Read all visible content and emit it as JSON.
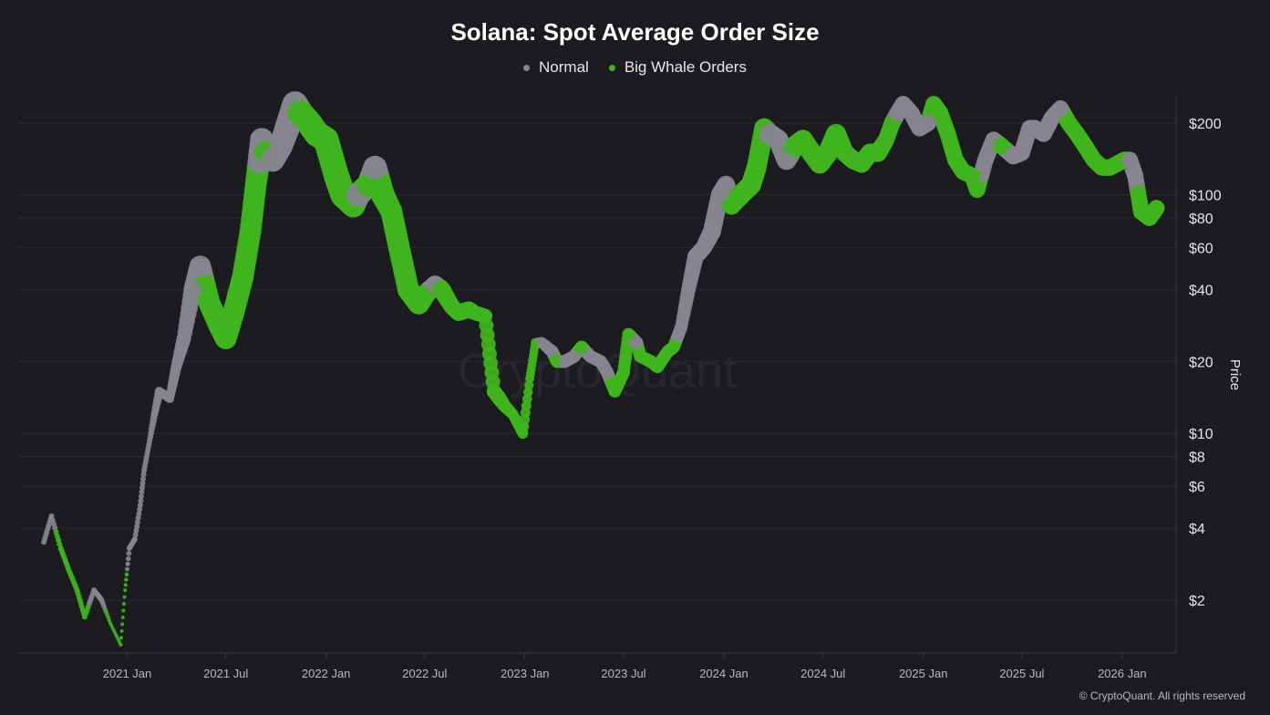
{
  "chart_data": {
    "type": "scatter",
    "title": "Solana: Spot Average Order Size",
    "ylabel": "Price",
    "y_scale": "log",
    "ylim": [
      1.2,
      260
    ],
    "xlim": [
      "2020-06-15",
      "2026-04-10"
    ],
    "grid": true,
    "legend_placement": "top-center",
    "y_ticks": [
      {
        "v": 200,
        "label": "$200"
      },
      {
        "v": 100,
        "label": "$100"
      },
      {
        "v": 80,
        "label": "$80"
      },
      {
        "v": 60,
        "label": "$60"
      },
      {
        "v": 40,
        "label": "$40"
      },
      {
        "v": 20,
        "label": "$20"
      },
      {
        "v": 10,
        "label": "$10"
      },
      {
        "v": 8,
        "label": "$8"
      },
      {
        "v": 6,
        "label": "$6"
      },
      {
        "v": 4,
        "label": "$4"
      },
      {
        "v": 2,
        "label": "$2"
      }
    ],
    "x_ticks": [
      {
        "d": "2021-01-01",
        "label": "2021 Jan"
      },
      {
        "d": "2021-07-01",
        "label": "2021 Jul"
      },
      {
        "d": "2022-01-01",
        "label": "2022 Jan"
      },
      {
        "d": "2022-07-01",
        "label": "2022 Jul"
      },
      {
        "d": "2023-01-01",
        "label": "2023 Jan"
      },
      {
        "d": "2023-07-01",
        "label": "2023 Jul"
      },
      {
        "d": "2024-01-01",
        "label": "2024 Jan"
      },
      {
        "d": "2024-07-01",
        "label": "2024 Jul"
      },
      {
        "d": "2025-01-01",
        "label": "2025 Jan"
      },
      {
        "d": "2025-07-01",
        "label": "2025 Jul"
      },
      {
        "d": "2026-01-01",
        "label": "2026 Jan"
      }
    ],
    "series": [
      {
        "name": "Normal",
        "color": "#86848f"
      },
      {
        "name": "Big Whale Orders",
        "color": "#3fb41c"
      }
    ],
    "point_fields": [
      "date",
      "price",
      "series_index",
      "relative_marker_size"
    ],
    "points": [
      [
        "2020-08-01",
        3.5,
        0,
        3
      ],
      [
        "2020-08-15",
        4.5,
        0,
        3
      ],
      [
        "2020-09-01",
        3.3,
        1,
        3
      ],
      [
        "2020-09-15",
        2.7,
        1,
        3
      ],
      [
        "2020-10-01",
        2.2,
        1,
        3
      ],
      [
        "2020-10-15",
        1.7,
        1,
        3
      ],
      [
        "2020-11-01",
        2.2,
        0,
        3
      ],
      [
        "2020-11-15",
        2.0,
        0,
        3
      ],
      [
        "2020-12-01",
        1.6,
        1,
        2
      ],
      [
        "2020-12-20",
        1.3,
        1,
        2
      ],
      [
        "2020-12-28",
        2.2,
        1,
        2
      ],
      [
        "2021-01-05",
        3.3,
        0,
        3
      ],
      [
        "2021-01-15",
        3.6,
        0,
        3
      ],
      [
        "2021-01-25",
        5,
        0,
        3
      ],
      [
        "2021-02-01",
        7,
        0,
        3
      ],
      [
        "2021-02-10",
        9,
        0,
        3
      ],
      [
        "2021-02-20",
        12,
        0,
        4
      ],
      [
        "2021-03-01",
        15,
        0,
        5
      ],
      [
        "2021-03-20",
        14,
        0,
        5
      ],
      [
        "2021-04-01",
        19,
        0,
        6
      ],
      [
        "2021-04-15",
        25,
        0,
        8
      ],
      [
        "2021-05-01",
        40,
        0,
        10
      ],
      [
        "2021-05-15",
        50,
        0,
        12
      ],
      [
        "2021-06-01",
        35,
        1,
        12
      ],
      [
        "2021-06-20",
        28,
        1,
        12
      ],
      [
        "2021-07-01",
        25,
        1,
        12
      ],
      [
        "2021-07-15",
        32,
        1,
        12
      ],
      [
        "2021-08-01",
        45,
        1,
        12
      ],
      [
        "2021-08-15",
        70,
        1,
        12
      ],
      [
        "2021-08-25",
        110,
        1,
        12
      ],
      [
        "2021-09-05",
        170,
        0,
        13
      ],
      [
        "2021-09-15",
        150,
        1,
        13
      ],
      [
        "2021-09-25",
        140,
        0,
        13
      ],
      [
        "2021-10-10",
        160,
        0,
        13
      ],
      [
        "2021-10-25",
        200,
        0,
        14
      ],
      [
        "2021-11-05",
        240,
        0,
        14
      ],
      [
        "2021-11-15",
        220,
        1,
        14
      ],
      [
        "2021-12-01",
        200,
        1,
        14
      ],
      [
        "2021-12-15",
        180,
        1,
        14
      ],
      [
        "2022-01-01",
        170,
        1,
        14
      ],
      [
        "2022-01-20",
        120,
        1,
        14
      ],
      [
        "2022-02-01",
        100,
        1,
        14
      ],
      [
        "2022-02-20",
        90,
        1,
        13
      ],
      [
        "2022-03-01",
        100,
        0,
        13
      ],
      [
        "2022-03-20",
        110,
        1,
        13
      ],
      [
        "2022-04-01",
        130,
        0,
        13
      ],
      [
        "2022-04-15",
        100,
        1,
        13
      ],
      [
        "2022-05-01",
        85,
        1,
        12
      ],
      [
        "2022-05-15",
        60,
        1,
        12
      ],
      [
        "2022-06-01",
        40,
        1,
        12
      ],
      [
        "2022-06-20",
        35,
        1,
        12
      ],
      [
        "2022-07-01",
        38,
        1,
        11
      ],
      [
        "2022-07-20",
        42,
        0,
        10
      ],
      [
        "2022-08-01",
        40,
        1,
        10
      ],
      [
        "2022-08-20",
        34,
        1,
        9
      ],
      [
        "2022-09-01",
        32,
        1,
        9
      ],
      [
        "2022-09-20",
        33,
        1,
        9
      ],
      [
        "2022-10-01",
        32,
        1,
        8
      ],
      [
        "2022-10-20",
        31,
        1,
        8
      ],
      [
        "2022-11-05",
        15,
        1,
        8
      ],
      [
        "2022-11-15",
        14,
        1,
        8
      ],
      [
        "2022-11-25",
        13,
        1,
        7
      ],
      [
        "2022-12-10",
        12,
        1,
        6
      ],
      [
        "2022-12-28",
        10,
        1,
        6
      ],
      [
        "2023-01-10",
        17,
        1,
        5
      ],
      [
        "2023-01-20",
        24,
        1,
        5
      ],
      [
        "2023-02-01",
        24,
        0,
        6
      ],
      [
        "2023-02-20",
        22,
        0,
        7
      ],
      [
        "2023-03-01",
        20,
        1,
        7
      ],
      [
        "2023-03-15",
        20,
        0,
        7
      ],
      [
        "2023-04-01",
        21,
        0,
        7
      ],
      [
        "2023-04-15",
        23,
        1,
        7
      ],
      [
        "2023-05-01",
        21,
        0,
        7
      ],
      [
        "2023-05-20",
        20,
        0,
        7
      ],
      [
        "2023-06-01",
        18,
        0,
        7
      ],
      [
        "2023-06-15",
        15,
        1,
        7
      ],
      [
        "2023-07-01",
        18,
        1,
        7
      ],
      [
        "2023-07-10",
        26,
        1,
        7
      ],
      [
        "2023-07-25",
        24,
        0,
        7
      ],
      [
        "2023-08-01",
        21,
        1,
        7
      ],
      [
        "2023-08-20",
        20,
        1,
        7
      ],
      [
        "2023-09-01",
        19,
        1,
        7
      ],
      [
        "2023-09-20",
        22,
        1,
        7
      ],
      [
        "2023-10-01",
        23,
        1,
        7
      ],
      [
        "2023-10-15",
        28,
        0,
        7
      ],
      [
        "2023-10-28",
        40,
        0,
        8
      ],
      [
        "2023-11-10",
        55,
        0,
        9
      ],
      [
        "2023-11-25",
        60,
        0,
        9
      ],
      [
        "2023-12-10",
        70,
        0,
        10
      ],
      [
        "2023-12-25",
        100,
        0,
        10
      ],
      [
        "2024-01-05",
        110,
        0,
        10
      ],
      [
        "2024-01-15",
        90,
        1,
        10
      ],
      [
        "2024-02-01",
        100,
        1,
        11
      ],
      [
        "2024-02-20",
        110,
        1,
        11
      ],
      [
        "2024-03-01",
        130,
        1,
        11
      ],
      [
        "2024-03-15",
        190,
        1,
        11
      ],
      [
        "2024-03-25",
        180,
        0,
        11
      ],
      [
        "2024-04-10",
        170,
        0,
        11
      ],
      [
        "2024-04-25",
        140,
        0,
        11
      ],
      [
        "2024-05-10",
        160,
        1,
        11
      ],
      [
        "2024-05-25",
        170,
        1,
        11
      ],
      [
        "2024-06-10",
        150,
        1,
        11
      ],
      [
        "2024-06-25",
        135,
        1,
        11
      ],
      [
        "2024-07-10",
        150,
        1,
        11
      ],
      [
        "2024-07-25",
        180,
        1,
        11
      ],
      [
        "2024-08-10",
        150,
        1,
        10
      ],
      [
        "2024-08-25",
        140,
        1,
        10
      ],
      [
        "2024-09-10",
        135,
        1,
        10
      ],
      [
        "2024-09-25",
        150,
        1,
        10
      ],
      [
        "2024-10-10",
        150,
        1,
        10
      ],
      [
        "2024-10-25",
        170,
        1,
        9
      ],
      [
        "2024-11-05",
        200,
        1,
        9
      ],
      [
        "2024-11-15",
        220,
        0,
        9
      ],
      [
        "2024-11-25",
        240,
        0,
        9
      ],
      [
        "2024-12-10",
        220,
        0,
        9
      ],
      [
        "2024-12-25",
        190,
        0,
        9
      ],
      [
        "2025-01-10",
        200,
        0,
        9
      ],
      [
        "2025-01-20",
        240,
        1,
        9
      ],
      [
        "2025-02-01",
        220,
        1,
        9
      ],
      [
        "2025-02-15",
        180,
        1,
        9
      ],
      [
        "2025-03-01",
        140,
        1,
        9
      ],
      [
        "2025-03-15",
        125,
        1,
        9
      ],
      [
        "2025-04-01",
        120,
        1,
        9
      ],
      [
        "2025-04-10",
        105,
        1,
        9
      ],
      [
        "2025-04-25",
        140,
        0,
        9
      ],
      [
        "2025-05-10",
        170,
        0,
        9
      ],
      [
        "2025-05-25",
        160,
        1,
        9
      ],
      [
        "2025-06-15",
        145,
        0,
        9
      ],
      [
        "2025-07-01",
        150,
        0,
        9
      ],
      [
        "2025-07-15",
        190,
        0,
        9
      ],
      [
        "2025-07-25",
        190,
        0,
        9
      ],
      [
        "2025-08-10",
        180,
        0,
        9
      ],
      [
        "2025-08-25",
        210,
        0,
        9
      ],
      [
        "2025-09-10",
        230,
        0,
        9
      ],
      [
        "2025-09-25",
        200,
        1,
        9
      ],
      [
        "2025-10-10",
        180,
        1,
        9
      ],
      [
        "2025-10-25",
        160,
        1,
        9
      ],
      [
        "2025-11-10",
        140,
        1,
        9
      ],
      [
        "2025-11-25",
        130,
        1,
        9
      ],
      [
        "2025-12-10",
        130,
        1,
        9
      ],
      [
        "2026-01-05",
        140,
        1,
        9
      ],
      [
        "2026-01-15",
        140,
        0,
        9
      ],
      [
        "2026-01-25",
        120,
        0,
        9
      ],
      [
        "2026-02-05",
        85,
        1,
        9
      ],
      [
        "2026-02-20",
        80,
        1,
        9
      ],
      [
        "2026-03-05",
        88,
        1,
        9
      ]
    ],
    "watermark": "CryptoQuant"
  },
  "credit": "© CryptoQuant. All rights reserved"
}
